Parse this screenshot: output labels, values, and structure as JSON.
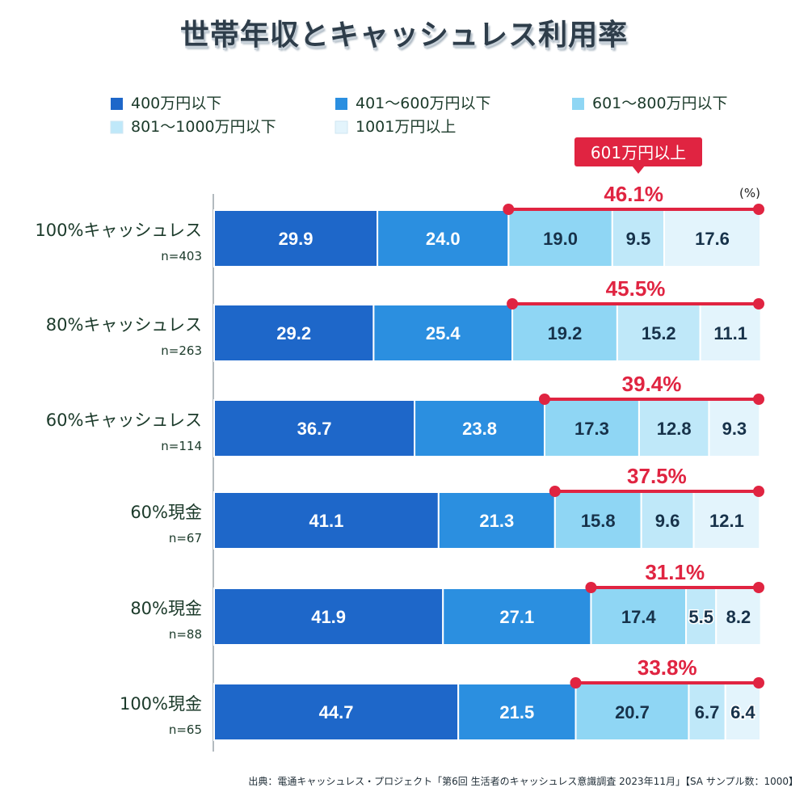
{
  "title": "世帯年収とキャッシュレス利用率",
  "unit_label": "(%)",
  "callout_label": "601万円以上",
  "source": "出典：電通キャッシュレス・プロジェクト「第6回 生活者のキャッシュレス意識調査 2023年11月」【SA サンプル数：1000】",
  "colors": {
    "series": [
      "#1e67c9",
      "#2b8fe0",
      "#8fd6f4",
      "#bfe8f9",
      "#e3f4fc"
    ],
    "accent": "#e02441",
    "category_text": "#1b3a2a",
    "dark_value_text": "#17324a"
  },
  "chart_data": {
    "type": "bar",
    "orientation": "horizontal",
    "stacked": true,
    "categories": [
      "100%キャッシュレス",
      "80%キャッシュレス",
      "60%キャッシュレス",
      "60%現金",
      "80%現金",
      "100%現金"
    ],
    "sample_sizes": [
      "n=403",
      "n=263",
      "n=114",
      "n=67",
      "n=88",
      "n=65"
    ],
    "series": [
      {
        "name": "400万円以下",
        "values": [
          29.9,
          29.2,
          36.7,
          41.1,
          41.9,
          44.7
        ]
      },
      {
        "name": "401〜600万円以下",
        "values": [
          24.0,
          25.4,
          23.8,
          21.3,
          27.1,
          21.5
        ]
      },
      {
        "name": "601〜800万円以下",
        "values": [
          19.0,
          19.2,
          17.3,
          15.8,
          17.4,
          20.7
        ]
      },
      {
        "name": "801〜1000万円以下",
        "values": [
          9.5,
          15.2,
          12.8,
          9.6,
          5.5,
          6.7
        ]
      },
      {
        "name": "1001万円以上",
        "values": [
          17.6,
          11.1,
          9.3,
          12.1,
          8.2,
          6.4
        ]
      }
    ],
    "value_labels": [
      [
        "29.9",
        "24.0",
        "19.0",
        "9.5",
        "17.6"
      ],
      [
        "29.2",
        "25.4",
        "19.2",
        "15.2",
        "11.1"
      ],
      [
        "36.7",
        "23.8",
        "17.3",
        "12.8",
        "9.3"
      ],
      [
        "41.1",
        "21.3",
        "15.8",
        "9.6",
        "12.1"
      ],
      [
        "41.9",
        "27.1",
        "17.4",
        "5.5",
        "8.2"
      ],
      [
        "44.7",
        "21.5",
        "20.7",
        "6.7",
        "6.4"
      ]
    ],
    "above_600_totals": [
      "46.1%",
      "45.5%",
      "39.4%",
      "37.5%",
      "31.1%",
      "33.8%"
    ],
    "xlim": [
      0,
      100
    ],
    "legend_position": "top",
    "title": "世帯年収とキャッシュレス利用率"
  }
}
